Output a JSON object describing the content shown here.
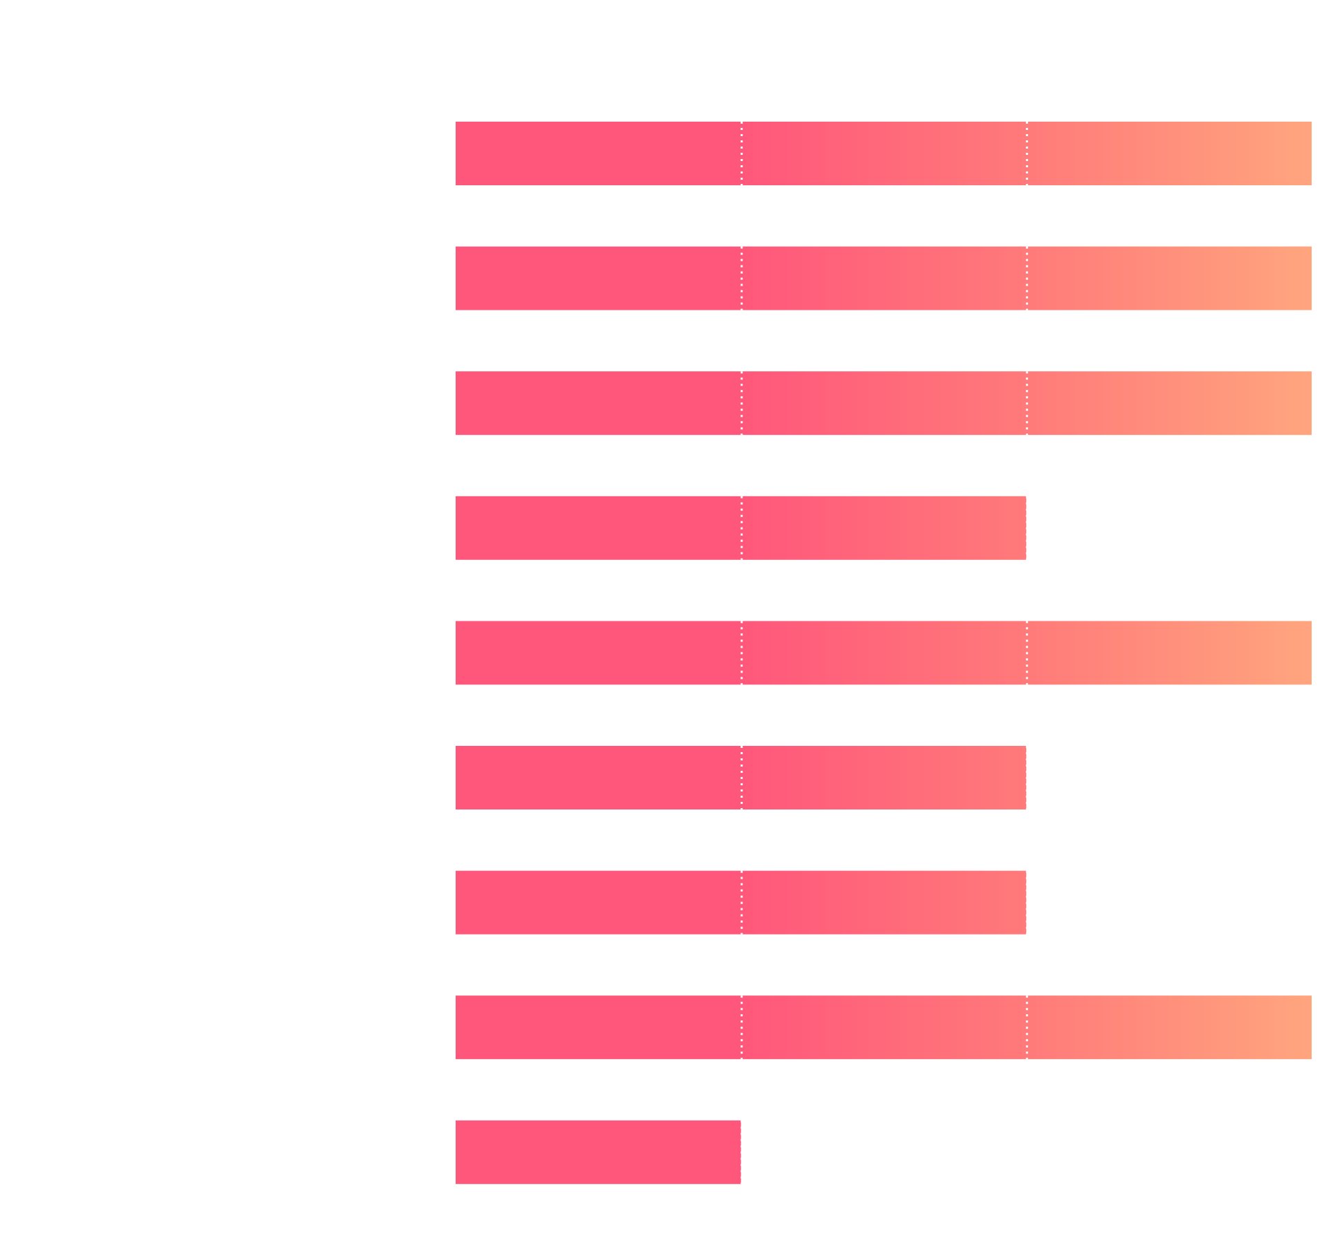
{
  "chart_data": {
    "type": "bar",
    "orientation": "horizontal",
    "stacked": true,
    "title": "",
    "xlabel": "",
    "ylabel": "",
    "categories": [
      "",
      "",
      "",
      "",
      "",
      "",
      "",
      "",
      ""
    ],
    "segment_value": 1,
    "values": [
      3,
      3,
      3,
      2,
      3,
      2,
      2,
      3,
      1
    ],
    "xlim": [
      0,
      3
    ],
    "grid": false,
    "legend": "none",
    "separator_style": "dotted",
    "colors": {
      "start": "#FF577B",
      "mid": "#FF7A7A",
      "end": "#FFA57E",
      "separator": "#FFFFFF",
      "background": "#FFFFFF"
    }
  }
}
